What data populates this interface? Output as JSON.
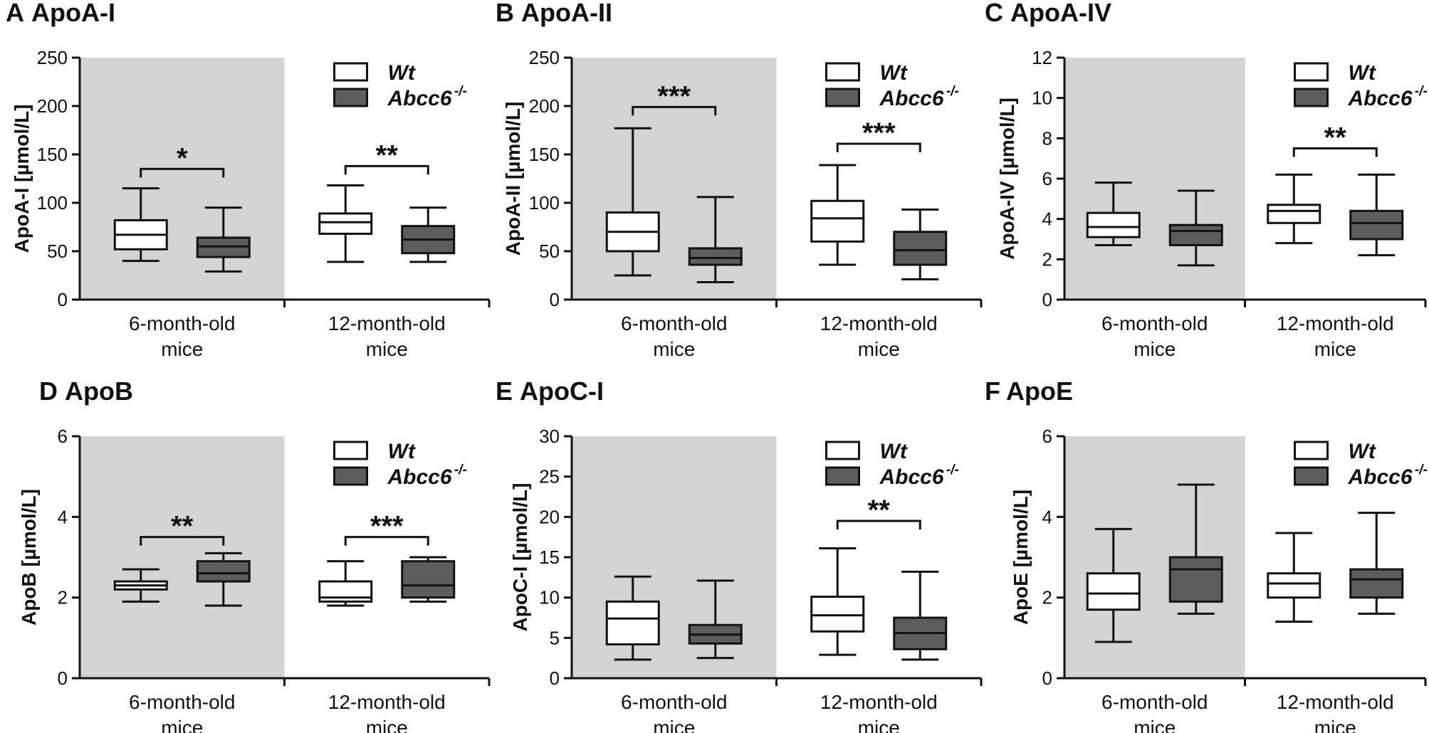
{
  "colors": {
    "wt": "#ffffff",
    "ko": "#5d5d5d",
    "shade": "#d4d4d4",
    "ink": "#111111"
  },
  "legend": {
    "wt": "Wt",
    "ko": "Abcc6",
    "ko_sup": "-/-"
  },
  "chart_data": [
    {
      "type": "box",
      "panel_label": "A",
      "title": "ApoA-I",
      "ylabel": "ApoA-I [µmol/L]",
      "ylim": [
        0,
        250
      ],
      "yticks": [
        0,
        50,
        100,
        150,
        200,
        250
      ],
      "categories": [
        {
          "line1": "6-month-old",
          "line2": "mice",
          "shaded": true,
          "wt": {
            "min": 40,
            "q1": 52,
            "median": 67,
            "q3": 82,
            "max": 115
          },
          "ko": {
            "min": 29,
            "q1": 44,
            "median": 55,
            "q3": 64,
            "max": 95
          },
          "significance": "*",
          "bracket_y": 135
        },
        {
          "line1": "12-month-old",
          "line2": "mice",
          "shaded": false,
          "wt": {
            "min": 39,
            "q1": 68,
            "median": 80,
            "q3": 89,
            "max": 118
          },
          "ko": {
            "min": 39,
            "q1": 48,
            "median": 62,
            "q3": 76,
            "max": 95
          },
          "significance": "**",
          "bracket_y": 138
        }
      ]
    },
    {
      "type": "box",
      "panel_label": "B",
      "title": "ApoA-II",
      "ylabel": "ApoA-II [µmol/L]",
      "ylim": [
        0,
        250
      ],
      "yticks": [
        0,
        50,
        100,
        150,
        200,
        250
      ],
      "categories": [
        {
          "line1": "6-month-old",
          "line2": "mice",
          "shaded": true,
          "wt": {
            "min": 25,
            "q1": 50,
            "median": 70,
            "q3": 90,
            "max": 177
          },
          "ko": {
            "min": 18,
            "q1": 36,
            "median": 43,
            "q3": 53,
            "max": 106
          },
          "significance": "***",
          "bracket_y": 199
        },
        {
          "line1": "12-month-old",
          "line2": "mice",
          "shaded": false,
          "wt": {
            "min": 36,
            "q1": 60,
            "median": 84,
            "q3": 102,
            "max": 139
          },
          "ko": {
            "min": 21,
            "q1": 36,
            "median": 51,
            "q3": 70,
            "max": 93
          },
          "significance": "***",
          "bracket_y": 161
        }
      ]
    },
    {
      "type": "box",
      "panel_label": "C",
      "title": "ApoA-IV",
      "ylabel": "ApoA-IV [µmol/L]",
      "ylim": [
        0,
        12
      ],
      "yticks": [
        0,
        2,
        4,
        6,
        8,
        10,
        12
      ],
      "categories": [
        {
          "line1": "6-month-old",
          "line2": "mice",
          "shaded": true,
          "wt": {
            "min": 2.7,
            "q1": 3.1,
            "median": 3.6,
            "q3": 4.3,
            "max": 5.8
          },
          "ko": {
            "min": 1.7,
            "q1": 2.7,
            "median": 3.4,
            "q3": 3.7,
            "max": 5.4
          },
          "significance": "",
          "bracket_y": null
        },
        {
          "line1": "12-month-old",
          "line2": "mice",
          "shaded": false,
          "wt": {
            "min": 2.8,
            "q1": 3.8,
            "median": 4.4,
            "q3": 4.7,
            "max": 6.2
          },
          "ko": {
            "min": 2.2,
            "q1": 3.0,
            "median": 3.8,
            "q3": 4.4,
            "max": 6.2
          },
          "significance": "**",
          "bracket_y": 7.5
        }
      ]
    },
    {
      "type": "box",
      "panel_label": "D",
      "title": "ApoB",
      "ylabel": "ApoB [µmol/L]",
      "ylim": [
        0,
        6
      ],
      "yticks": [
        0,
        2,
        4,
        6
      ],
      "categories": [
        {
          "line1": "6-month-old",
          "line2": "mice",
          "shaded": true,
          "wt": {
            "min": 1.9,
            "q1": 2.2,
            "median": 2.3,
            "q3": 2.4,
            "max": 2.7
          },
          "ko": {
            "min": 1.8,
            "q1": 2.4,
            "median": 2.6,
            "q3": 2.9,
            "max": 3.1
          },
          "significance": "**",
          "bracket_y": 3.5
        },
        {
          "line1": "12-month-old",
          "line2": "mice",
          "shaded": false,
          "wt": {
            "min": 1.8,
            "q1": 1.9,
            "median": 2.0,
            "q3": 2.4,
            "max": 2.9
          },
          "ko": {
            "min": 1.9,
            "q1": 2.0,
            "median": 2.3,
            "q3": 2.9,
            "max": 3.0
          },
          "significance": "***",
          "bracket_y": 3.5
        }
      ]
    },
    {
      "type": "box",
      "panel_label": "E",
      "title": "ApoC-I",
      "ylabel": "ApoC-I [µmol/L]",
      "ylim": [
        0,
        30
      ],
      "yticks": [
        0,
        5,
        10,
        15,
        20,
        25,
        30
      ],
      "categories": [
        {
          "line1": "6-month-old",
          "line2": "mice",
          "shaded": true,
          "wt": {
            "min": 2.3,
            "q1": 4.2,
            "median": 7.4,
            "q3": 9.5,
            "max": 12.6
          },
          "ko": {
            "min": 2.5,
            "q1": 4.3,
            "median": 5.4,
            "q3": 6.6,
            "max": 12.1
          },
          "significance": "",
          "bracket_y": null
        },
        {
          "line1": "12-month-old",
          "line2": "mice",
          "shaded": false,
          "wt": {
            "min": 2.9,
            "q1": 5.8,
            "median": 7.8,
            "q3": 10.1,
            "max": 16.1
          },
          "ko": {
            "min": 2.3,
            "q1": 3.6,
            "median": 5.6,
            "q3": 7.5,
            "max": 13.2
          },
          "significance": "**",
          "bracket_y": 19.5
        }
      ]
    },
    {
      "type": "box",
      "panel_label": "F",
      "title": "ApoE",
      "ylabel": "ApoE [µmol/L]",
      "ylim": [
        0,
        6
      ],
      "yticks": [
        0,
        2,
        4,
        6
      ],
      "categories": [
        {
          "line1": "6-month-old",
          "line2": "mice",
          "shaded": true,
          "wt": {
            "min": 0.9,
            "q1": 1.7,
            "median": 2.1,
            "q3": 2.6,
            "max": 3.7
          },
          "ko": {
            "min": 1.6,
            "q1": 1.9,
            "median": 2.7,
            "q3": 3.0,
            "max": 4.8
          },
          "significance": "",
          "bracket_y": null
        },
        {
          "line1": "12-month-old",
          "line2": "mice",
          "shaded": false,
          "wt": {
            "min": 1.4,
            "q1": 2.0,
            "median": 2.35,
            "q3": 2.6,
            "max": 3.6
          },
          "ko": {
            "min": 1.6,
            "q1": 2.0,
            "median": 2.45,
            "q3": 2.7,
            "max": 4.1
          },
          "significance": "",
          "bracket_y": null
        }
      ]
    }
  ]
}
